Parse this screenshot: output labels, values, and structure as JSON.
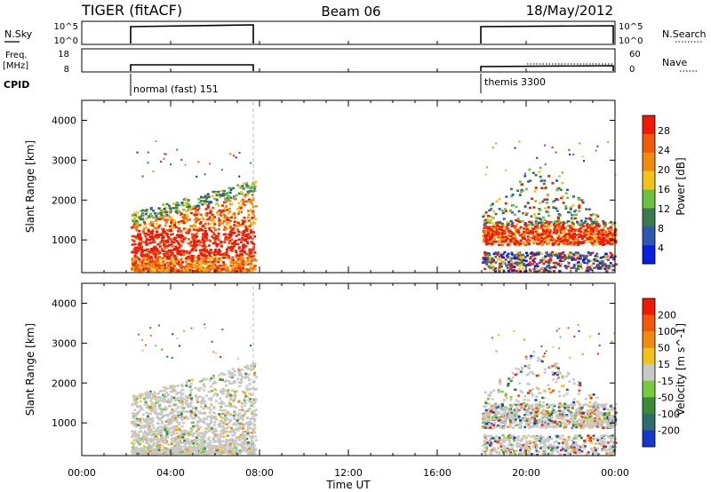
{
  "header": {
    "title_left": "TIGER (fitACF)",
    "title_center": "Beam 06",
    "title_right": "18/May/2012"
  },
  "panels": {
    "nsky": {
      "label": "N.Sky",
      "left_ticks": [
        "10^5",
        "10^0"
      ],
      "right_ticks": [
        "10^5",
        "10^0"
      ],
      "right_label": "N.Search"
    },
    "freq": {
      "label_top": "Freq.",
      "label_unit": "[MHz]",
      "left_ticks": [
        "18",
        "8"
      ],
      "right_ticks": [
        "60",
        "0"
      ],
      "right_label": "Nave"
    },
    "cpid": {
      "label": "CPID",
      "segments": [
        {
          "label": "normal (fast) 151"
        },
        {
          "label": "themis 3300"
        }
      ]
    }
  },
  "power_panel": {
    "ylabel": "Slant Range [km]",
    "yticks": [
      "4000",
      "3000",
      "2000",
      "1000"
    ],
    "colorbar_label": "Power [dB]",
    "colorbar_ticks": [
      "28",
      "24",
      "20",
      "16",
      "12",
      "8",
      "4"
    ],
    "colors": [
      "#0a1fe0",
      "#2f56b0",
      "#3c7a4e",
      "#6cc23e",
      "#f2c21c",
      "#f08a10",
      "#f05a0a",
      "#ee1a05"
    ]
  },
  "velocity_panel": {
    "ylabel": "Slant Range [km]",
    "yticks": [
      "4000",
      "3000",
      "2000",
      "1000"
    ],
    "colorbar_label": "Velocity [m s^-1]",
    "colorbar_ticks": [
      "200",
      "100",
      "50",
      "15",
      "-15",
      "-50",
      "-100",
      "-200"
    ],
    "colors": [
      "#1638c8",
      "#2e6d6e",
      "#3a8a3a",
      "#76cc3c",
      "#c8c8c8",
      "#f2c21c",
      "#f08a10",
      "#f05a0a",
      "#ee1a05"
    ]
  },
  "xaxis": {
    "ticks": [
      "00:00",
      "04:00",
      "08:00",
      "12:00",
      "16:00",
      "20:00",
      "00:00"
    ],
    "label": "Time UT"
  },
  "chart_data": [
    {
      "type": "heatmap",
      "title": "Power [dB]",
      "xlabel": "",
      "ylabel": "Slant Range [km]",
      "x_range_hours": [
        0,
        24
      ],
      "ylim": [
        180,
        4500
      ],
      "colorbar_range": [
        0,
        32
      ],
      "series": [
        {
          "x_start": 2.2,
          "x_end": 7.8,
          "y_start": 200,
          "y_end": 2600,
          "description": "scatter band centered ~1000 km, high power 24-32 dB"
        },
        {
          "x_start": 18.0,
          "x_end": 24.0,
          "y_start": 200,
          "y_end": 3300,
          "description": "scatter with low power near 200-600 km and high power near 1000-1300 km"
        }
      ]
    },
    {
      "type": "heatmap",
      "title": "Velocity [m s^-1]",
      "xlabel": "Time UT",
      "ylabel": "Slant Range [km]",
      "x_range_hours": [
        0,
        24
      ],
      "ylim": [
        180,
        4500
      ],
      "colorbar_range": [
        -250,
        250
      ],
      "series": [
        {
          "x_start": 2.2,
          "x_end": 7.8,
          "y_start": 200,
          "y_end": 2600,
          "description": "mostly near-zero velocity (grey)"
        },
        {
          "x_start": 18.0,
          "x_end": 24.0,
          "y_start": 200,
          "y_end": 3300,
          "description": "mixed velocities, mostly grey with colored fringes"
        }
      ]
    },
    {
      "type": "line",
      "title": "N.Sky / N.Search",
      "segments_hours": [
        [
          2.2,
          7.8
        ],
        [
          18.0,
          24.0
        ]
      ],
      "value": "~10^5"
    },
    {
      "type": "line",
      "title": "Freq. [MHz] / Nave",
      "segments_hours": [
        [
          2.2,
          7.8
        ],
        [
          18.0,
          24.0
        ]
      ],
      "freq_value": 10
    }
  ]
}
